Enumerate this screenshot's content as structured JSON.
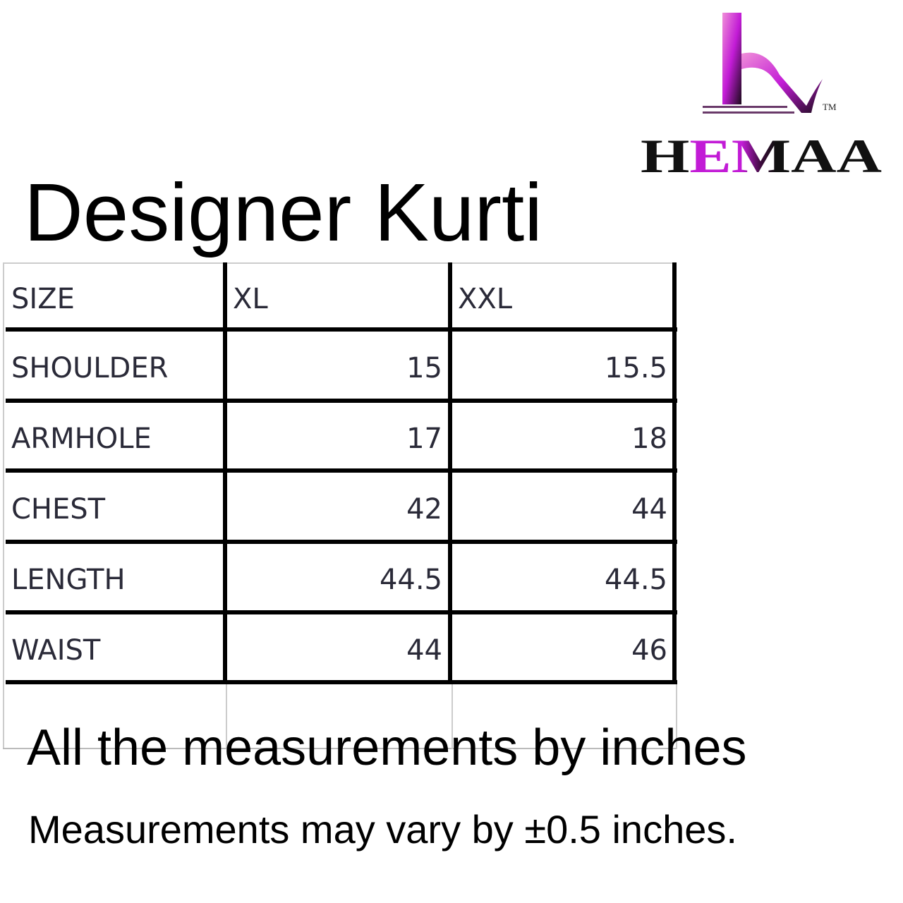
{
  "brand": {
    "name": "HEMAA",
    "trademark": "TM",
    "colors": {
      "magenta": "#c21bd6",
      "black": "#111111"
    }
  },
  "title": "Designer Kurti",
  "table": {
    "headers": [
      "SIZE",
      "XL",
      "XXL"
    ],
    "rows": [
      {
        "label": "SHOULDER",
        "xl": "15",
        "xxl": "15.5"
      },
      {
        "label": "ARMHOLE",
        "xl": "17",
        "xxl": "18"
      },
      {
        "label": "CHEST",
        "xl": "42",
        "xxl": "44"
      },
      {
        "label": "LENGTH",
        "xl": "44.5",
        "xxl": "44.5"
      },
      {
        "label": "WAIST",
        "xl": "44",
        "xxl": "46"
      }
    ]
  },
  "notes": {
    "unit_note": "All the measurements by inches",
    "tolerance_note": "Measurements may vary by ±0.5 inches."
  }
}
